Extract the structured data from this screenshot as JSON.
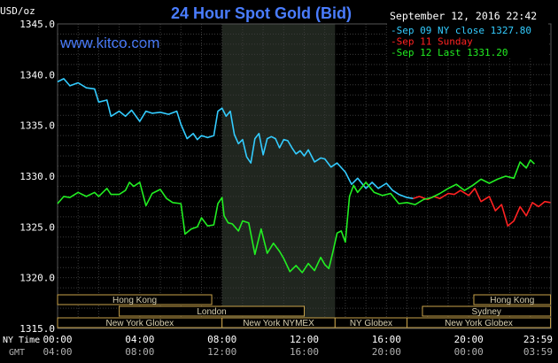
{
  "chart_data": {
    "type": "line",
    "title": "24 Hour Spot Gold (Bid)",
    "brand": "www.kitco.com",
    "timestamp": "September 12, 2016 22:42",
    "ylabel": "USD/oz",
    "ylim": [
      1315.0,
      1345.0
    ],
    "yticks": [
      "1345.0",
      "1340.0",
      "1335.0",
      "1330.0",
      "1325.0",
      "1320.0",
      "1315.0"
    ],
    "xlim": [
      0,
      24
    ],
    "xtick_labels": [
      "00:00",
      "04:00",
      "08:00",
      "12:00",
      "16:00",
      "20:00",
      "23:59"
    ],
    "gmt_tick_labels": [
      "04:00",
      "08:00",
      "12:00",
      "16:00",
      "20:00",
      "00:00",
      "03:59"
    ],
    "xtick_hours": [
      0,
      4,
      8,
      12,
      16,
      20,
      23.98
    ],
    "ny_time_label": "NY Time",
    "gmt_label": "GMT",
    "grid": true,
    "legend_placement": "top-right",
    "legend": [
      {
        "label": "Sep 09 NY close 1327.80",
        "color": "#33ccff"
      },
      {
        "label": "Sep 11 Sunday",
        "color": "#ff2222"
      },
      {
        "label": "Sep 12 Last 1331.20",
        "color": "#22ee22"
      }
    ],
    "highlight_hours": [
      8.0,
      13.5
    ],
    "series": [
      {
        "name": "Sep 09 NY close 1327.80",
        "color": "#33ccff",
        "x": [
          0,
          0.3,
          0.6,
          1.0,
          1.4,
          1.8,
          2.0,
          2.4,
          2.6,
          3.0,
          3.3,
          3.6,
          4.0,
          4.3,
          4.6,
          5.0,
          5.4,
          5.8,
          6.0,
          6.3,
          6.6,
          6.8,
          7.0,
          7.3,
          7.6,
          7.8,
          8.0,
          8.2,
          8.4,
          8.6,
          8.8,
          9.0,
          9.2,
          9.4,
          9.6,
          9.8,
          10.0,
          10.2,
          10.4,
          10.6,
          10.8,
          11.0,
          11.2,
          11.4,
          11.6,
          11.8,
          12.0,
          12.2,
          12.5,
          12.8,
          13.0,
          13.3,
          13.6,
          14.0,
          14.3,
          14.6,
          15.0,
          15.3,
          15.6,
          16.0,
          16.3,
          16.6,
          17.0,
          17.3
        ],
        "values": [
          1339.3,
          1339.6,
          1338.9,
          1339.2,
          1338.7,
          1338.6,
          1337.3,
          1337.5,
          1335.9,
          1336.4,
          1335.9,
          1336.5,
          1335.4,
          1336.4,
          1336.2,
          1336.3,
          1336.1,
          1336.4,
          1335.1,
          1333.7,
          1334.2,
          1333.6,
          1334.0,
          1333.8,
          1334.0,
          1336.4,
          1336.7,
          1335.9,
          1336.4,
          1334.1,
          1333.2,
          1333.6,
          1331.9,
          1331.3,
          1333.7,
          1334.2,
          1332.1,
          1333.7,
          1333.9,
          1333.7,
          1332.8,
          1333.6,
          1333.5,
          1332.8,
          1332.2,
          1332.5,
          1332.0,
          1332.6,
          1331.4,
          1331.8,
          1331.7,
          1330.9,
          1331.3,
          1330.4,
          1329.2,
          1329.8,
          1328.8,
          1329.4,
          1328.8,
          1329.3,
          1328.6,
          1328.2,
          1327.9,
          1327.8
        ]
      },
      {
        "name": "Sep 11 Sunday",
        "color": "#ff2222",
        "x": [
          17.3,
          17.6,
          18.0,
          18.3,
          18.6,
          19.0,
          19.3,
          19.6,
          20.0,
          20.3,
          20.6,
          21.0,
          21.3,
          21.6,
          21.9,
          22.2,
          22.5,
          22.8,
          23.1,
          23.4,
          23.7,
          23.98
        ],
        "values": [
          1327.8,
          1328.0,
          1327.7,
          1328.0,
          1327.8,
          1328.3,
          1328.2,
          1328.6,
          1328.1,
          1328.8,
          1327.5,
          1328.0,
          1326.6,
          1327.2,
          1325.1,
          1325.6,
          1327.0,
          1326.1,
          1327.4,
          1327.0,
          1327.5,
          1327.4
        ]
      },
      {
        "name": "Sep 12 Last 1331.20",
        "color": "#22ee22",
        "x": [
          0,
          0.3,
          0.6,
          1.0,
          1.4,
          1.8,
          2.0,
          2.4,
          2.6,
          3.0,
          3.3,
          3.5,
          3.7,
          4.0,
          4.3,
          4.6,
          5.0,
          5.3,
          5.6,
          6.0,
          6.2,
          6.5,
          6.8,
          7.0,
          7.3,
          7.6,
          7.8,
          8.0,
          8.1,
          8.3,
          8.5,
          8.8,
          9.0,
          9.3,
          9.6,
          9.9,
          10.2,
          10.5,
          10.8,
          11.0,
          11.3,
          11.6,
          11.9,
          12.2,
          12.5,
          12.8,
          13.0,
          13.2,
          13.4,
          13.6,
          13.8,
          14.0,
          14.2,
          14.4,
          14.6,
          15.0,
          15.4,
          15.8,
          16.2,
          16.6,
          17.0,
          17.4,
          17.8,
          18.2,
          18.6,
          19.0,
          19.4,
          19.8,
          20.2,
          20.6,
          21.0,
          21.4,
          21.8,
          22.2,
          22.5,
          22.8,
          23.0,
          23.2
        ],
        "values": [
          1327.3,
          1328.0,
          1327.9,
          1328.4,
          1328.0,
          1328.4,
          1328.0,
          1328.8,
          1328.2,
          1328.2,
          1328.6,
          1329.4,
          1329.0,
          1329.4,
          1327.1,
          1328.3,
          1328.7,
          1327.8,
          1327.4,
          1327.3,
          1324.3,
          1324.8,
          1325.0,
          1325.9,
          1325.1,
          1325.2,
          1327.3,
          1327.9,
          1326.1,
          1325.4,
          1325.3,
          1324.6,
          1325.6,
          1325.4,
          1322.3,
          1324.8,
          1322.4,
          1323.4,
          1322.6,
          1321.9,
          1320.6,
          1321.2,
          1320.5,
          1321.4,
          1320.7,
          1322.0,
          1321.3,
          1320.9,
          1322.6,
          1324.4,
          1324.6,
          1323.5,
          1328.0,
          1329.1,
          1328.4,
          1329.4,
          1328.4,
          1328.1,
          1328.3,
          1327.3,
          1327.4,
          1327.2,
          1327.7,
          1327.9,
          1328.3,
          1328.8,
          1329.2,
          1328.6,
          1329.1,
          1329.7,
          1329.3,
          1329.7,
          1330.0,
          1329.8,
          1331.4,
          1330.8,
          1331.6,
          1331.2
        ]
      }
    ],
    "sessions": [
      {
        "label": "Hong Kong",
        "start": 0.0,
        "end": 7.5,
        "row": 0
      },
      {
        "label": "Hong Kong",
        "start": 20.25,
        "end": 23.98,
        "row": 0
      },
      {
        "label": "London",
        "start": 3.0,
        "end": 12.0,
        "row": 1
      },
      {
        "label": "Sydney",
        "start": 17.75,
        "end": 23.98,
        "row": 1
      },
      {
        "label": "New York Globex",
        "start": 0.0,
        "end": 8.0,
        "row": 2
      },
      {
        "label": "New York NYMEX",
        "start": 8.0,
        "end": 13.5,
        "row": 2
      },
      {
        "label": "NY Globex",
        "start": 13.5,
        "end": 17.0,
        "row": 2
      },
      {
        "label": "New York Globex",
        "start": 17.0,
        "end": 23.98,
        "row": 2
      }
    ]
  }
}
